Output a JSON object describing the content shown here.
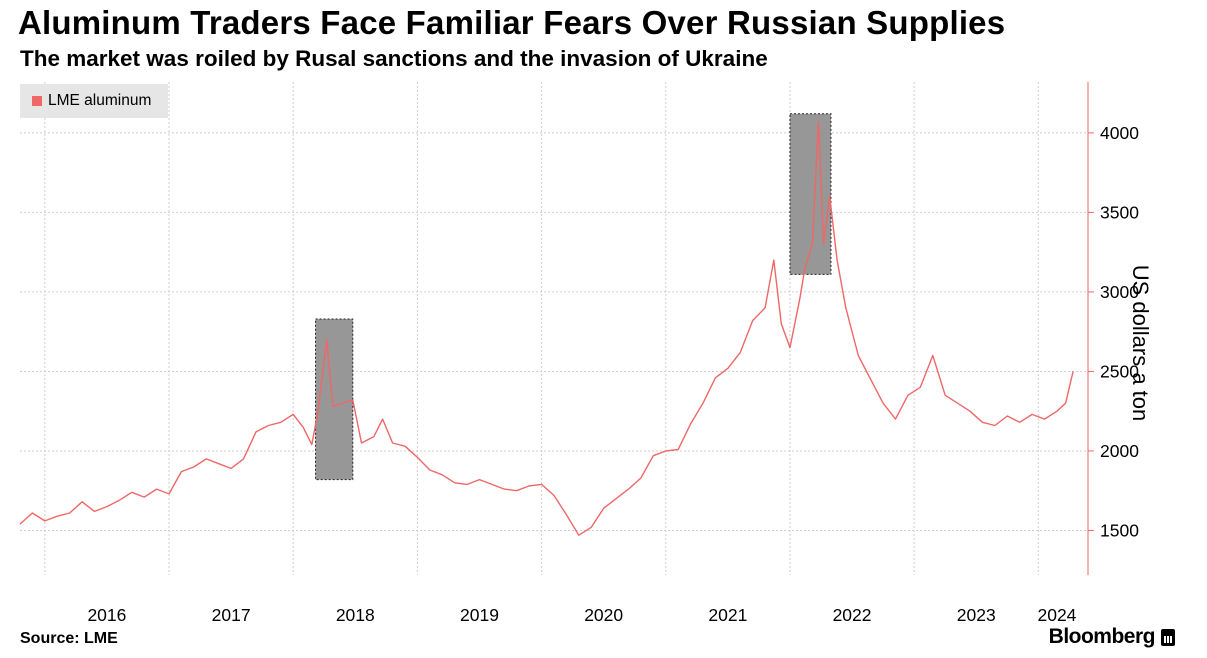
{
  "header": {
    "title": "Aluminum Traders Face Familiar Fears Over Russian Supplies",
    "subtitle": "The market was roiled by Rusal sanctions and the invasion of Ukraine"
  },
  "footer": {
    "source": "Source: LME",
    "brand": "Bloomberg"
  },
  "colors": {
    "series": "#ef6767",
    "axis": "#ef6767",
    "grid": "#cfcfcf",
    "highlight": "#8c8c8c"
  },
  "chart_data": {
    "type": "line",
    "title": "Aluminum Traders Face Familiar Fears Over Russian Supplies",
    "subtitle": "The market was roiled by Rusal sanctions and the invasion of Ukraine",
    "ylabel": "US dollars a ton",
    "ylim": [
      1220,
      4320
    ],
    "yticks": [
      1500,
      2000,
      2500,
      3000,
      3500,
      4000
    ],
    "xlim": [
      2015.8,
      2024.4
    ],
    "x_tick_labels": [
      "2016",
      "2017",
      "2018",
      "2019",
      "2020",
      "2021",
      "2022",
      "2023",
      "2024"
    ],
    "grid": true,
    "legend_position": "top-left",
    "series": [
      {
        "name": "LME aluminum",
        "color": "#ef6767",
        "points": [
          [
            2015.8,
            1540
          ],
          [
            2015.9,
            1610
          ],
          [
            2016.0,
            1560
          ],
          [
            2016.1,
            1590
          ],
          [
            2016.2,
            1610
          ],
          [
            2016.3,
            1680
          ],
          [
            2016.4,
            1620
          ],
          [
            2016.5,
            1650
          ],
          [
            2016.6,
            1690
          ],
          [
            2016.7,
            1740
          ],
          [
            2016.8,
            1710
          ],
          [
            2016.9,
            1760
          ],
          [
            2017.0,
            1730
          ],
          [
            2017.1,
            1870
          ],
          [
            2017.2,
            1900
          ],
          [
            2017.3,
            1950
          ],
          [
            2017.4,
            1920
          ],
          [
            2017.5,
            1890
          ],
          [
            2017.6,
            1950
          ],
          [
            2017.7,
            2120
          ],
          [
            2017.8,
            2160
          ],
          [
            2017.9,
            2180
          ],
          [
            2018.0,
            2230
          ],
          [
            2018.08,
            2150
          ],
          [
            2018.15,
            2040
          ],
          [
            2018.2,
            2250
          ],
          [
            2018.27,
            2700
          ],
          [
            2018.32,
            2280
          ],
          [
            2018.4,
            2300
          ],
          [
            2018.48,
            2320
          ],
          [
            2018.55,
            2050
          ],
          [
            2018.65,
            2090
          ],
          [
            2018.72,
            2200
          ],
          [
            2018.8,
            2050
          ],
          [
            2018.9,
            2030
          ],
          [
            2019.0,
            1960
          ],
          [
            2019.1,
            1880
          ],
          [
            2019.2,
            1850
          ],
          [
            2019.3,
            1800
          ],
          [
            2019.4,
            1790
          ],
          [
            2019.5,
            1820
          ],
          [
            2019.6,
            1790
          ],
          [
            2019.7,
            1760
          ],
          [
            2019.8,
            1750
          ],
          [
            2019.9,
            1780
          ],
          [
            2020.0,
            1790
          ],
          [
            2020.1,
            1720
          ],
          [
            2020.2,
            1600
          ],
          [
            2020.3,
            1470
          ],
          [
            2020.4,
            1520
          ],
          [
            2020.5,
            1640
          ],
          [
            2020.6,
            1700
          ],
          [
            2020.7,
            1760
          ],
          [
            2020.8,
            1830
          ],
          [
            2020.9,
            1970
          ],
          [
            2021.0,
            2000
          ],
          [
            2021.1,
            2010
          ],
          [
            2021.2,
            2170
          ],
          [
            2021.3,
            2300
          ],
          [
            2021.4,
            2460
          ],
          [
            2021.5,
            2520
          ],
          [
            2021.6,
            2620
          ],
          [
            2021.7,
            2820
          ],
          [
            2021.8,
            2900
          ],
          [
            2021.87,
            3200
          ],
          [
            2021.93,
            2800
          ],
          [
            2022.0,
            2650
          ],
          [
            2022.08,
            2960
          ],
          [
            2022.12,
            3150
          ],
          [
            2022.18,
            3300
          ],
          [
            2022.23,
            4070
          ],
          [
            2022.27,
            3300
          ],
          [
            2022.32,
            3600
          ],
          [
            2022.38,
            3200
          ],
          [
            2022.45,
            2900
          ],
          [
            2022.55,
            2600
          ],
          [
            2022.65,
            2450
          ],
          [
            2022.75,
            2300
          ],
          [
            2022.85,
            2200
          ],
          [
            2022.95,
            2350
          ],
          [
            2023.05,
            2400
          ],
          [
            2023.15,
            2600
          ],
          [
            2023.25,
            2350
          ],
          [
            2023.35,
            2300
          ],
          [
            2023.45,
            2250
          ],
          [
            2023.55,
            2180
          ],
          [
            2023.65,
            2160
          ],
          [
            2023.75,
            2220
          ],
          [
            2023.85,
            2180
          ],
          [
            2023.95,
            2230
          ],
          [
            2024.05,
            2200
          ],
          [
            2024.15,
            2250
          ],
          [
            2024.22,
            2300
          ],
          [
            2024.28,
            2500
          ]
        ]
      }
    ],
    "highlights": [
      {
        "x0": 2018.18,
        "x1": 2018.48,
        "y0": 1820,
        "y1": 2830
      },
      {
        "x0": 2022.0,
        "x1": 2022.33,
        "y0": 3110,
        "y1": 4120
      }
    ]
  }
}
